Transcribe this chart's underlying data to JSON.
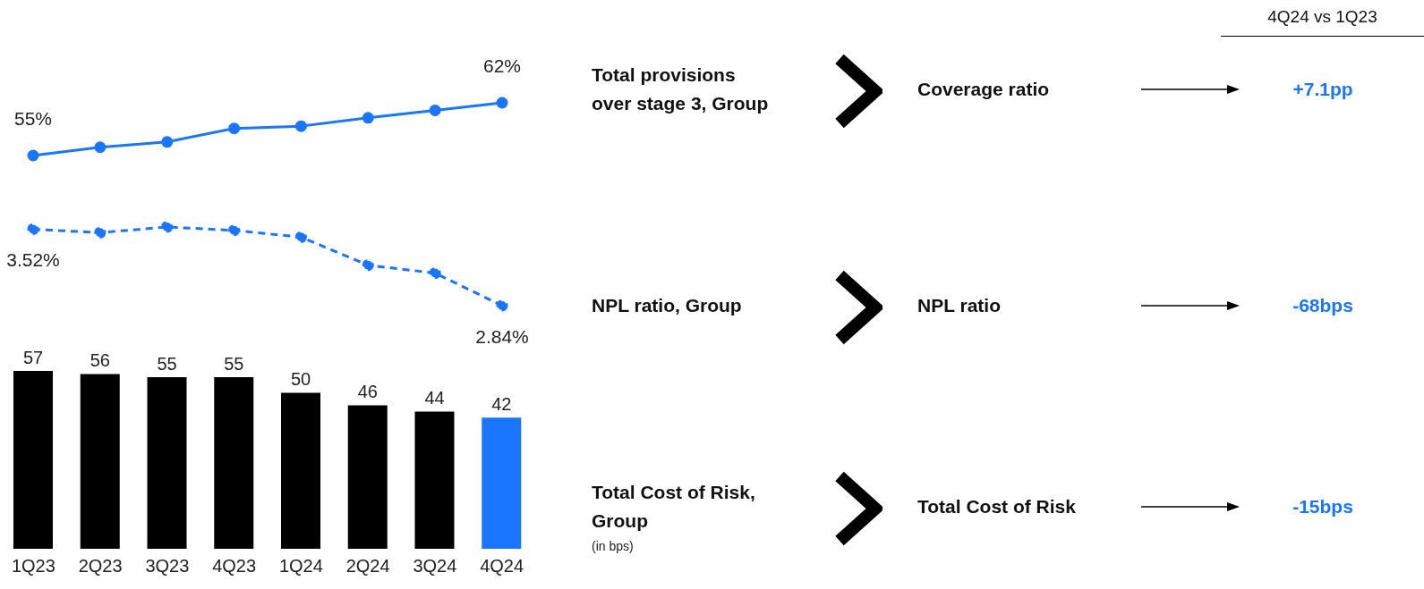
{
  "chart_data": [
    {
      "type": "line",
      "tick_labels": false,
      "marker": "circle",
      "line_style": "solid",
      "series": [
        {
          "color": "#1a75ff",
          "values": [
            55,
            56.1,
            56.8,
            58.6,
            58.9,
            60.0,
            61.0,
            62
          ],
          "value_labels": [
            "55%",
            null,
            null,
            null,
            null,
            null,
            null,
            "62%"
          ]
        }
      ]
    },
    {
      "type": "line",
      "tick_labels": false,
      "marker": "circle",
      "line_style": "dashed",
      "series": [
        {
          "color": "#1a75ff",
          "values": [
            3.52,
            3.49,
            3.54,
            3.51,
            3.45,
            3.2,
            3.13,
            2.84
          ],
          "value_labels": [
            "3.52%",
            null,
            null,
            null,
            null,
            null,
            null,
            "2.84%"
          ]
        }
      ]
    },
    {
      "type": "bar",
      "categories": [
        "1Q23",
        "2Q23",
        "3Q23",
        "4Q23",
        "1Q24",
        "2Q24",
        "3Q24",
        "4Q24"
      ],
      "tick_labels": "x",
      "data_labels": true,
      "values": [
        57,
        56,
        55,
        55,
        50,
        46,
        44,
        42
      ],
      "colors": [
        "#000000",
        "#000000",
        "#000000",
        "#000000",
        "#000000",
        "#000000",
        "#000000",
        "#1a75ff"
      ]
    },
    {
      "type": "other",
      "color": "#1a75ff",
      "annotations": [
        "4Q24 vs 1Q23",
        "Total provisions\nover stage 3, Group",
        "Coverage ratio",
        "+7.1pp",
        "NPL ratio, Group",
        "NPL ratio",
        "-68bps",
        "Total Cost of Risk,\nGroup",
        "Total Cost of Risk",
        "-15bps",
        "(in bps)"
      ]
    }
  ]
}
